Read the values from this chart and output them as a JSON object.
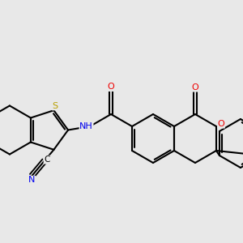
{
  "background_color": "#e8e8e8",
  "atom_colors": {
    "S": "#b8a000",
    "N": "#0000ee",
    "O": "#ee0000",
    "C": "#000000",
    "H": "#4488aa"
  },
  "bond_color": "#000000",
  "bond_width": 1.5,
  "figsize": [
    3.0,
    3.0
  ],
  "dpi": 100
}
